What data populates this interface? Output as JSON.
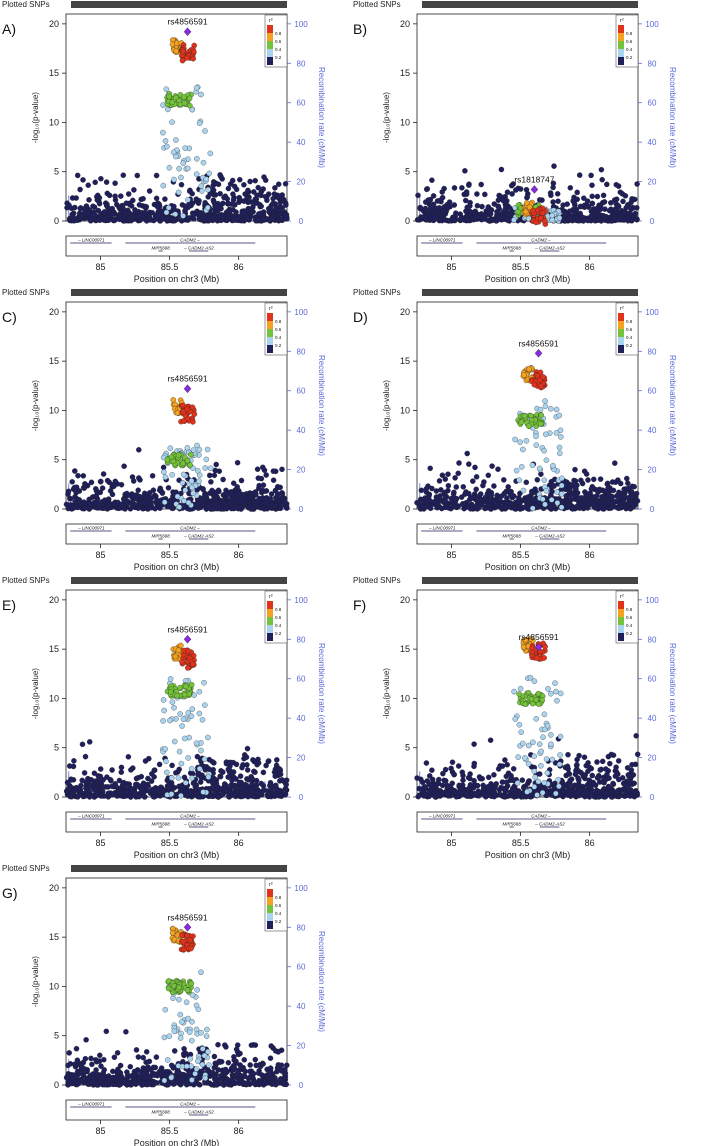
{
  "colors": {
    "ld_0_2": "#1f1f5c",
    "ld_2_4": "#a9d3ee",
    "ld_4_6": "#74c43a",
    "ld_6_8": "#f4a21f",
    "ld_8_10": "#e1331b",
    "lead": "#8a2be2",
    "recomb": "#5a6bd8",
    "header_bar": "#444444",
    "axis": "#222222"
  },
  "common": {
    "header_label": "Plotted SNPs",
    "ylabel_left": "-log₁₀(p-value)",
    "ylabel_right": "Recombination rate (cM/Mb)",
    "xlabel": "Position on chr3 (Mb)",
    "x_ticks": [
      "85",
      "85.5",
      "86"
    ],
    "x_tick_values": [
      85,
      85.5,
      86
    ],
    "xlim": [
      84.75,
      86.35
    ],
    "y_ticks": [
      "0",
      "5",
      "10",
      "15",
      "20"
    ],
    "ylim": [
      0,
      21
    ],
    "r_ticks": [
      "0",
      "20",
      "40",
      "60",
      "80",
      "100"
    ],
    "rlim": [
      0,
      105
    ],
    "legend_title": "r²",
    "legend_ticks": [
      "0.8",
      "0.6",
      "0.4",
      "0.2"
    ],
    "legend_position": "top-right",
    "genes": [
      {
        "label": "←LINC00971",
        "start": 84.78,
        "end": 85.08,
        "row": 0
      },
      {
        "label": "CADM2→",
        "start": 85.18,
        "end": 86.12,
        "row": 0
      },
      {
        "label": "MIR5688",
        "start": 85.42,
        "end": 85.45,
        "row": 1
      },
      {
        "label": "←CADM2-AS2",
        "start": 85.64,
        "end": 85.78,
        "row": 1
      }
    ]
  },
  "chart_data": [
    {
      "panel_label": "A)",
      "type": "scatter",
      "lead_snp": "rs4856591",
      "lead_x": 85.63,
      "lead_y": 19.2,
      "peak_y": 18.5,
      "green_y": 12.3,
      "blue_y": 14.0,
      "tail_y": 8.5
    },
    {
      "panel_label": "B)",
      "type": "scatter",
      "lead_snp": "rs1818747",
      "lead_x": 85.6,
      "lead_y": 3.2,
      "peak_y": 2.0,
      "green_y": 1.2,
      "blue_y": 1.4,
      "tail_y": 0.9
    },
    {
      "panel_label": "C)",
      "type": "scatter",
      "lead_snp": "rs4856591",
      "lead_x": 85.63,
      "lead_y": 12.2,
      "peak_y": 11.2,
      "green_y": 5.0,
      "blue_y": 6.5,
      "tail_y": 3.5
    },
    {
      "panel_label": "D)",
      "type": "scatter",
      "lead_snp": "rs4856591",
      "lead_x": 85.63,
      "lead_y": 15.8,
      "peak_y": 14.5,
      "green_y": 9.0,
      "blue_y": 11.0,
      "tail_y": 5.5
    },
    {
      "panel_label": "E)",
      "type": "scatter",
      "lead_snp": "rs4856591",
      "lead_x": 85.63,
      "lead_y": 16.0,
      "peak_y": 15.5,
      "green_y": 10.8,
      "blue_y": 12.0,
      "tail_y": 7.0
    },
    {
      "panel_label": "F)",
      "type": "scatter",
      "lead_snp": "rs4856591",
      "lead_x": 85.63,
      "lead_y": 15.2,
      "peak_y": 16.2,
      "green_y": 10.0,
      "blue_y": 12.5,
      "tail_y": 8.0
    },
    {
      "panel_label": "G)",
      "type": "scatter",
      "lead_snp": "rs4856591",
      "lead_x": 85.63,
      "lead_y": 16.0,
      "peak_y": 16.0,
      "green_y": 10.0,
      "blue_y": 11.5,
      "tail_y": 7.5
    }
  ]
}
